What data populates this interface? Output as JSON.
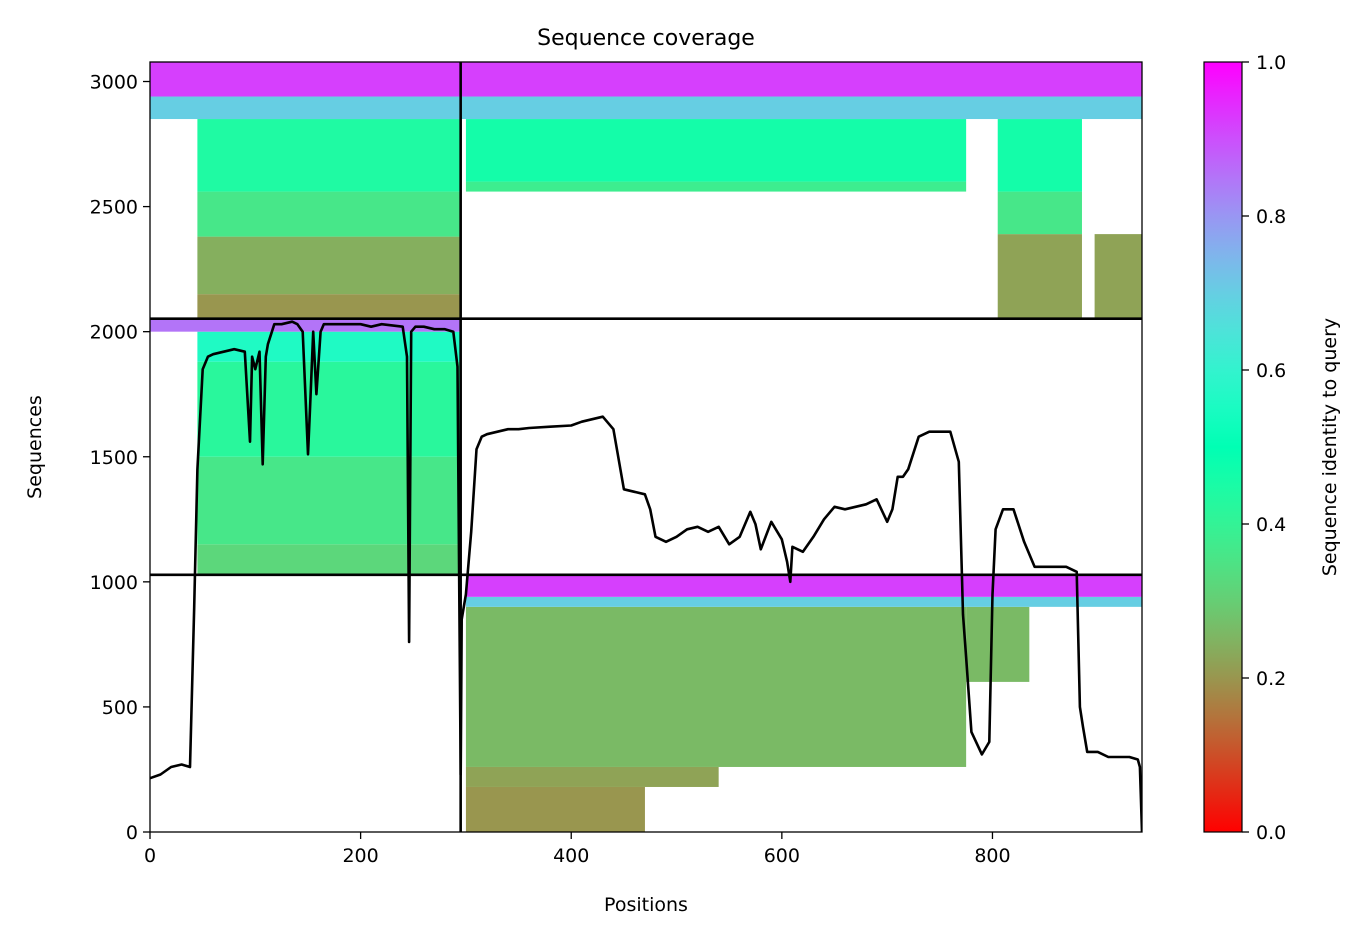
{
  "chart_data": {
    "type": "heatmap",
    "title": "Sequence coverage",
    "xlabel": "Positions",
    "ylabel": "Sequences",
    "xlim": [
      0,
      942
    ],
    "ylim": [
      0,
      3078
    ],
    "xticks": [
      0,
      200,
      400,
      600,
      800
    ],
    "yticks": [
      0,
      500,
      1000,
      1500,
      2000,
      2500,
      3000
    ],
    "colorbar": {
      "label": "Sequence identity to query",
      "range": [
        0,
        1
      ],
      "ticks": [
        "0.0",
        "0.2",
        "0.4",
        "0.6",
        "0.8",
        "1.0"
      ],
      "colormap": "rainbow_r"
    },
    "block_boundaries": {
      "vertical_x": 295,
      "horizontal_y": [
        1028,
        2052
      ]
    },
    "blocks": [
      {
        "name": "top-left",
        "x_range": [
          0,
          295
        ],
        "y_range": [
          2052,
          3078
        ],
        "bands": [
          {
            "y": [
              2052,
              2150
            ],
            "x": [
              45,
              295
            ],
            "identity": 0.2
          },
          {
            "y": [
              2150,
              2380
            ],
            "x": [
              45,
              295
            ],
            "identity": 0.24
          },
          {
            "y": [
              2380,
              2560
            ],
            "x": [
              45,
              295
            ],
            "identity": 0.36
          },
          {
            "y": [
              2560,
              2850
            ],
            "x": [
              45,
              295
            ],
            "identity": 0.44
          },
          {
            "y": [
              2850,
              2940
            ],
            "x": [
              0,
              295
            ],
            "identity": 0.7
          },
          {
            "y": [
              2940,
              3078
            ],
            "x": [
              0,
              295
            ],
            "identity": 0.92
          }
        ]
      },
      {
        "name": "top-right",
        "x_range": [
          295,
          942
        ],
        "y_range": [
          2052,
          3078
        ],
        "bands": [
          {
            "y": [
              2052,
              2390
            ],
            "x": [
              897,
              942
            ],
            "identity": 0.22
          },
          {
            "y": [
              2052,
              2390
            ],
            "x": [
              805,
              885
            ],
            "identity": 0.22
          },
          {
            "y": [
              2390,
              2560
            ],
            "x": [
              805,
              885
            ],
            "identity": 0.36
          },
          {
            "y": [
              2560,
              2600
            ],
            "x": [
              300,
              775
            ],
            "identity": 0.38
          },
          {
            "y": [
              2600,
              2850
            ],
            "x": [
              300,
              775
            ],
            "identity": 0.46
          },
          {
            "y": [
              2560,
              2850
            ],
            "x": [
              805,
              885
            ],
            "identity": 0.46
          },
          {
            "y": [
              2850,
              2940
            ],
            "x": [
              295,
              942
            ],
            "identity": 0.7
          },
          {
            "y": [
              2940,
              3078
            ],
            "x": [
              295,
              942
            ],
            "identity": 0.92
          }
        ]
      },
      {
        "name": "middle-left",
        "x_range": [
          0,
          295
        ],
        "y_range": [
          1028,
          2052
        ],
        "bands": [
          {
            "y": [
              1028,
              1150
            ],
            "x": [
              45,
              295
            ],
            "identity": 0.32
          },
          {
            "y": [
              1150,
              1500
            ],
            "x": [
              45,
              295
            ],
            "identity": 0.36
          },
          {
            "y": [
              1500,
              1880
            ],
            "x": [
              45,
              295
            ],
            "identity": 0.42
          },
          {
            "y": [
              1880,
              2000
            ],
            "x": [
              45,
              295
            ],
            "identity": 0.56
          },
          {
            "y": [
              2000,
              2052
            ],
            "x": [
              0,
              295
            ],
            "identity": 0.85
          }
        ]
      },
      {
        "name": "bottom-right",
        "x_range": [
          295,
          942
        ],
        "y_range": [
          0,
          1028
        ],
        "bands": [
          {
            "y": [
              0,
              180
            ],
            "x": [
              300,
              470
            ],
            "identity": 0.2
          },
          {
            "y": [
              180,
              260
            ],
            "x": [
              300,
              540
            ],
            "identity": 0.22
          },
          {
            "y": [
              260,
              900
            ],
            "x": [
              300,
              775
            ],
            "identity": 0.26
          },
          {
            "y": [
              600,
              900
            ],
            "x": [
              775,
              835
            ],
            "identity": 0.26
          },
          {
            "y": [
              900,
              940
            ],
            "x": [
              300,
              942
            ],
            "identity": 0.7
          },
          {
            "y": [
              940,
              1028
            ],
            "x": [
              300,
              942
            ],
            "identity": 0.92
          }
        ]
      }
    ],
    "coverage_line": {
      "name": "coverage",
      "x": [
        0,
        10,
        20,
        30,
        38,
        42,
        45,
        50,
        55,
        60,
        70,
        80,
        90,
        95,
        97,
        100,
        104,
        107,
        110,
        112,
        118,
        125,
        135,
        140,
        145,
        150,
        152,
        155,
        158,
        162,
        165,
        170,
        180,
        190,
        200,
        210,
        220,
        240,
        244,
        246,
        248,
        252,
        260,
        270,
        280,
        288,
        292,
        295,
        296,
        300,
        305,
        310,
        315,
        320,
        330,
        340,
        350,
        360,
        380,
        400,
        410,
        420,
        430,
        440,
        450,
        460,
        470,
        475,
        480,
        490,
        500,
        510,
        520,
        530,
        540,
        550,
        560,
        570,
        575,
        580,
        590,
        600,
        605,
        608,
        610,
        620,
        630,
        640,
        650,
        660,
        670,
        680,
        690,
        700,
        705,
        710,
        715,
        720,
        730,
        740,
        750,
        760,
        768,
        772,
        775,
        780,
        790,
        797,
        800,
        803,
        810,
        820,
        830,
        840,
        850,
        860,
        870,
        880,
        883,
        886,
        890,
        900,
        910,
        920,
        930,
        938,
        940,
        942
      ],
      "y": [
        215,
        230,
        260,
        270,
        260,
        900,
        1450,
        1850,
        1900,
        1910,
        1920,
        1930,
        1920,
        1560,
        1900,
        1850,
        1920,
        1470,
        1900,
        1950,
        2030,
        2030,
        2040,
        2030,
        2000,
        1510,
        1700,
        2000,
        1750,
        2000,
        2030,
        2030,
        2030,
        2030,
        2030,
        2020,
        2030,
        2020,
        1900,
        760,
        2000,
        2020,
        2020,
        2010,
        2010,
        2000,
        1860,
        230,
        850,
        950,
        1200,
        1530,
        1580,
        1590,
        1600,
        1610,
        1610,
        1615,
        1620,
        1625,
        1640,
        1650,
        1660,
        1610,
        1370,
        1360,
        1350,
        1290,
        1180,
        1160,
        1180,
        1210,
        1220,
        1200,
        1220,
        1150,
        1180,
        1280,
        1230,
        1130,
        1240,
        1170,
        1080,
        1000,
        1140,
        1120,
        1180,
        1250,
        1300,
        1290,
        1300,
        1310,
        1330,
        1240,
        1290,
        1420,
        1420,
        1450,
        1580,
        1600,
        1600,
        1600,
        1480,
        870,
        700,
        400,
        310,
        360,
        950,
        1210,
        1290,
        1290,
        1160,
        1060,
        1060,
        1060,
        1060,
        1040,
        500,
        420,
        320,
        320,
        300,
        300,
        300,
        290,
        260,
        0
      ]
    }
  }
}
